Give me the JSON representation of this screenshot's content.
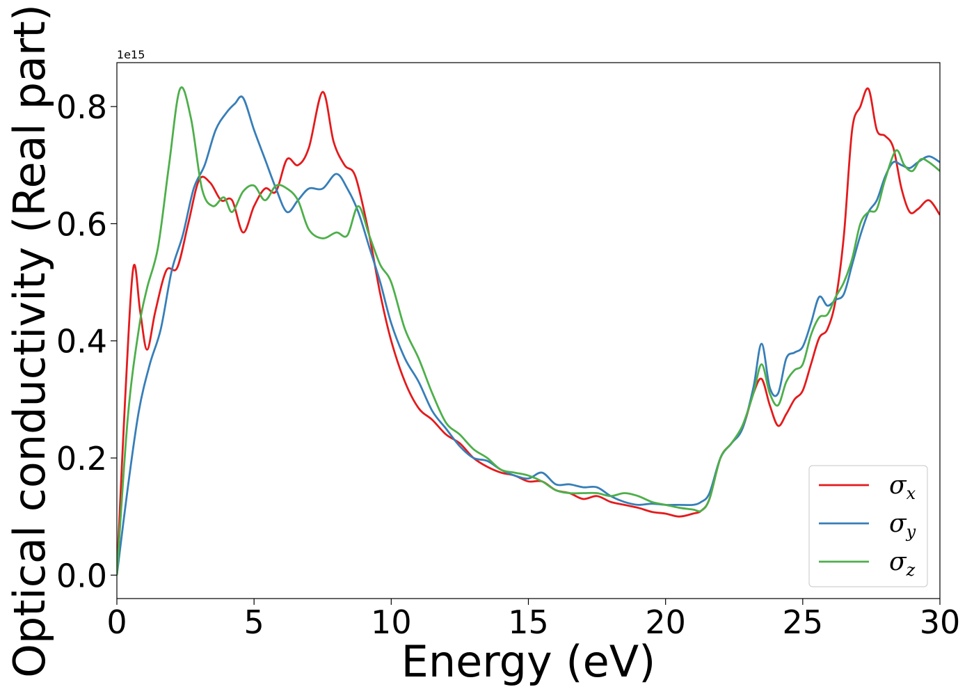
{
  "chart_data": {
    "type": "line",
    "title": "",
    "xlabel": "Energy (eV)",
    "ylabel": "Optical conductivity (Real part)",
    "y_offset_text": "1e15",
    "xlim": [
      0,
      30
    ],
    "ylim": [
      -0.04,
      0.875
    ],
    "xticks": [
      0,
      5,
      10,
      15,
      20,
      25,
      30
    ],
    "xtick_labels": [
      "0",
      "5",
      "10",
      "15",
      "20",
      "25",
      "30"
    ],
    "yticks": [
      0.0,
      0.2,
      0.4,
      0.6,
      0.8
    ],
    "ytick_labels": [
      "0.0",
      "0.2",
      "0.4",
      "0.6",
      "0.8"
    ],
    "grid": false,
    "legend_position": "bottom-right",
    "series": [
      {
        "name": "σx",
        "symbol": "σ",
        "subscript": "x",
        "color": "#e41a1c",
        "x": [
          0,
          0.3,
          0.6,
          0.85,
          1.1,
          1.4,
          1.8,
          2.2,
          2.6,
          3.0,
          3.4,
          3.8,
          4.2,
          4.6,
          5.0,
          5.4,
          5.8,
          6.2,
          6.6,
          7.0,
          7.5,
          7.9,
          8.3,
          8.7,
          9.2,
          9.6,
          10.0,
          10.5,
          11.0,
          11.5,
          12.0,
          12.5,
          13.0,
          13.5,
          14.0,
          14.5,
          15.0,
          15.5,
          16.0,
          16.5,
          17.0,
          17.5,
          18.0,
          18.5,
          19.0,
          19.5,
          20.0,
          20.5,
          21.0,
          21.3,
          21.6,
          22.0,
          22.4,
          22.8,
          23.2,
          23.5,
          23.8,
          24.1,
          24.4,
          24.7,
          25.0,
          25.3,
          25.6,
          25.9,
          26.2,
          26.5,
          26.8,
          27.1,
          27.4,
          27.7,
          28.0,
          28.3,
          28.6,
          28.9,
          29.2,
          29.6,
          30.0
        ],
        "values": [
          0.0,
          0.3,
          0.525,
          0.45,
          0.385,
          0.45,
          0.52,
          0.525,
          0.6,
          0.675,
          0.67,
          0.64,
          0.64,
          0.585,
          0.63,
          0.66,
          0.655,
          0.71,
          0.7,
          0.73,
          0.825,
          0.74,
          0.7,
          0.68,
          0.58,
          0.48,
          0.4,
          0.33,
          0.285,
          0.265,
          0.24,
          0.225,
          0.2,
          0.185,
          0.175,
          0.17,
          0.16,
          0.16,
          0.145,
          0.14,
          0.13,
          0.135,
          0.125,
          0.12,
          0.115,
          0.108,
          0.105,
          0.1,
          0.105,
          0.11,
          0.13,
          0.2,
          0.225,
          0.25,
          0.31,
          0.335,
          0.29,
          0.255,
          0.275,
          0.3,
          0.315,
          0.36,
          0.405,
          0.42,
          0.47,
          0.58,
          0.76,
          0.8,
          0.83,
          0.76,
          0.75,
          0.73,
          0.66,
          0.62,
          0.625,
          0.64,
          0.615
        ]
      },
      {
        "name": "σy",
        "symbol": "σ",
        "subscript": "y",
        "color": "#377eb8",
        "x": [
          0,
          0.4,
          0.8,
          1.2,
          1.6,
          2.0,
          2.4,
          2.8,
          3.2,
          3.6,
          4.0,
          4.3,
          4.6,
          5.0,
          5.4,
          5.8,
          6.2,
          6.6,
          7.0,
          7.5,
          8.0,
          8.4,
          8.8,
          9.2,
          9.6,
          10.0,
          10.5,
          11.0,
          11.5,
          12.0,
          12.5,
          13.0,
          13.5,
          14.0,
          14.5,
          15.0,
          15.5,
          16.0,
          16.5,
          17.0,
          17.5,
          18.0,
          18.5,
          19.0,
          19.5,
          20.0,
          20.5,
          21.0,
          21.3,
          21.6,
          22.0,
          22.4,
          22.8,
          23.2,
          23.5,
          23.8,
          24.1,
          24.4,
          24.7,
          25.0,
          25.3,
          25.6,
          25.9,
          26.2,
          26.5,
          26.8,
          27.1,
          27.4,
          27.7,
          28.0,
          28.3,
          28.6,
          28.9,
          29.2,
          29.6,
          30.0
        ],
        "values": [
          0.0,
          0.15,
          0.28,
          0.36,
          0.42,
          0.52,
          0.58,
          0.66,
          0.7,
          0.76,
          0.79,
          0.805,
          0.815,
          0.76,
          0.71,
          0.66,
          0.62,
          0.64,
          0.66,
          0.66,
          0.685,
          0.66,
          0.62,
          0.56,
          0.5,
          0.43,
          0.37,
          0.33,
          0.28,
          0.25,
          0.22,
          0.2,
          0.195,
          0.18,
          0.17,
          0.165,
          0.175,
          0.155,
          0.155,
          0.15,
          0.15,
          0.135,
          0.125,
          0.12,
          0.122,
          0.12,
          0.12,
          0.12,
          0.125,
          0.14,
          0.2,
          0.225,
          0.25,
          0.32,
          0.395,
          0.32,
          0.31,
          0.37,
          0.38,
          0.39,
          0.43,
          0.475,
          0.46,
          0.47,
          0.48,
          0.53,
          0.58,
          0.62,
          0.64,
          0.68,
          0.705,
          0.7,
          0.695,
          0.705,
          0.715,
          0.705
        ]
      },
      {
        "name": "σz",
        "symbol": "σ",
        "subscript": "z",
        "color": "#4daf4a",
        "x": [
          0,
          0.4,
          0.8,
          1.1,
          1.5,
          1.9,
          2.3,
          2.7,
          3.1,
          3.5,
          3.9,
          4.2,
          4.6,
          5.0,
          5.4,
          5.8,
          6.2,
          6.6,
          7.0,
          7.5,
          8.0,
          8.4,
          8.8,
          9.2,
          9.6,
          10.0,
          10.5,
          11.0,
          11.5,
          12.0,
          12.5,
          13.0,
          13.5,
          14.0,
          14.5,
          15.0,
          15.5,
          16.0,
          16.5,
          17.0,
          17.5,
          18.0,
          18.5,
          19.0,
          19.5,
          20.0,
          20.5,
          21.0,
          21.3,
          21.6,
          22.0,
          22.4,
          22.8,
          23.2,
          23.5,
          23.8,
          24.1,
          24.4,
          24.7,
          25.0,
          25.3,
          25.6,
          25.9,
          26.2,
          26.5,
          26.8,
          27.1,
          27.4,
          27.7,
          28.0,
          28.4,
          28.7,
          29.0,
          29.3,
          29.6,
          30.0
        ],
        "values": [
          0.0,
          0.27,
          0.42,
          0.49,
          0.56,
          0.7,
          0.83,
          0.78,
          0.66,
          0.63,
          0.645,
          0.62,
          0.655,
          0.665,
          0.64,
          0.665,
          0.66,
          0.64,
          0.59,
          0.575,
          0.585,
          0.58,
          0.63,
          0.58,
          0.53,
          0.5,
          0.42,
          0.37,
          0.31,
          0.26,
          0.24,
          0.215,
          0.2,
          0.18,
          0.175,
          0.17,
          0.16,
          0.145,
          0.14,
          0.14,
          0.14,
          0.135,
          0.14,
          0.135,
          0.125,
          0.12,
          0.115,
          0.112,
          0.11,
          0.13,
          0.2,
          0.225,
          0.255,
          0.31,
          0.36,
          0.31,
          0.29,
          0.33,
          0.35,
          0.36,
          0.41,
          0.44,
          0.445,
          0.475,
          0.5,
          0.54,
          0.6,
          0.62,
          0.625,
          0.675,
          0.725,
          0.7,
          0.69,
          0.71,
          0.705,
          0.69
        ]
      }
    ]
  }
}
